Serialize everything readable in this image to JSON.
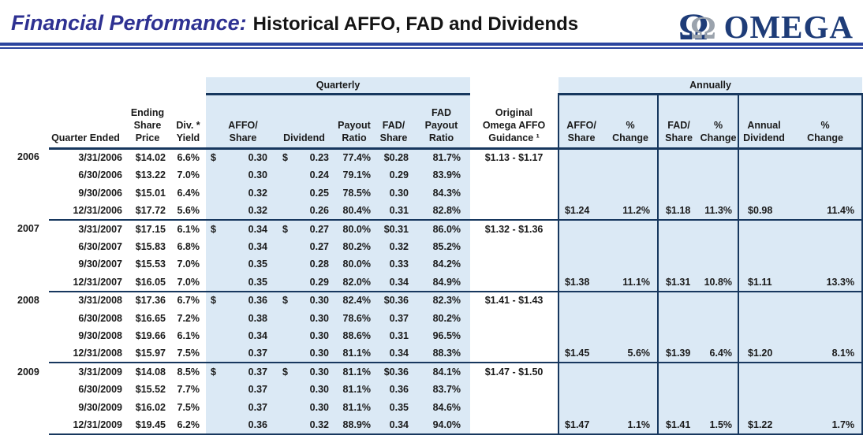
{
  "header": {
    "title_emphasis": "Financial Performance:",
    "title_rest": "Historical AFFO, FAD and Dividends",
    "logo_word": "OMEGA",
    "logo_icon": "omega-symbol"
  },
  "colors": {
    "title_blue": "#2E3192",
    "rule_blue": "#2B449E",
    "table_border_navy": "#17375E",
    "section_light_blue": "#DBE9F5",
    "logo_navy": "#1E3C78",
    "logo_silver": "#9BA3AD"
  },
  "table": {
    "bands": {
      "quarterly": "Quarterly",
      "annually": "Annually"
    },
    "headers": {
      "quarter_ended": "Quarter Ended",
      "price": "Ending\nShare\nPrice",
      "yield": "Div. *\nYield",
      "affo": "AFFO/\nShare",
      "dividend": "Dividend",
      "payout": "Payout\nRatio",
      "fad": "FAD/\nShare",
      "fad_payout": "FAD\nPayout\nRatio",
      "guidance": "Original\nOmega AFFO\nGuidance ¹",
      "a_affo": "AFFO/\nShare",
      "a_affo_chg": "%\nChange",
      "a_fad": "FAD/\nShare",
      "a_fad_chg": "%\nChange",
      "a_div": "Annual\nDividend",
      "a_div_chg": "%\nChange"
    },
    "years": [
      {
        "year": "2006",
        "rows": [
          {
            "date": "3/31/2006",
            "price": "$14.02",
            "yield": "6.6%",
            "affo_sign": "$",
            "affo": "0.30",
            "div_sign": "$",
            "div": "0.23",
            "payout": "77.4%",
            "fad": "$0.28",
            "fad_payout": "81.7%",
            "guidance": "$1.13 - $1.17"
          },
          {
            "date": "6/30/2006",
            "price": "$13.22",
            "yield": "7.0%",
            "affo": "0.30",
            "div": "0.24",
            "payout": "79.1%",
            "fad": "0.29",
            "fad_payout": "83.9%"
          },
          {
            "date": "9/30/2006",
            "price": "$15.01",
            "yield": "6.4%",
            "affo": "0.32",
            "div": "0.25",
            "payout": "78.5%",
            "fad": "0.30",
            "fad_payout": "84.3%"
          },
          {
            "date": "12/31/2006",
            "price": "$17.72",
            "yield": "5.6%",
            "affo": "0.32",
            "div": "0.26",
            "payout": "80.4%",
            "fad": "0.31",
            "fad_payout": "82.8%",
            "annual": {
              "affo": "$1.24",
              "affo_chg": "11.2%",
              "fad": "$1.18",
              "fad_chg": "11.3%",
              "div": "$0.98",
              "div_chg": "11.4%"
            }
          }
        ]
      },
      {
        "year": "2007",
        "rows": [
          {
            "date": "3/31/2007",
            "price": "$17.15",
            "yield": "6.1%",
            "affo_sign": "$",
            "affo": "0.34",
            "div_sign": "$",
            "div": "0.27",
            "payout": "80.0%",
            "fad": "$0.31",
            "fad_payout": "86.0%",
            "guidance": "$1.32 - $1.36"
          },
          {
            "date": "6/30/2007",
            "price": "$15.83",
            "yield": "6.8%",
            "affo": "0.34",
            "div": "0.27",
            "payout": "80.2%",
            "fad": "0.32",
            "fad_payout": "85.2%"
          },
          {
            "date": "9/30/2007",
            "price": "$15.53",
            "yield": "7.0%",
            "affo": "0.35",
            "div": "0.28",
            "payout": "80.0%",
            "fad": "0.33",
            "fad_payout": "84.2%"
          },
          {
            "date": "12/31/2007",
            "price": "$16.05",
            "yield": "7.0%",
            "affo": "0.35",
            "div": "0.29",
            "payout": "82.0%",
            "fad": "0.34",
            "fad_payout": "84.9%",
            "annual": {
              "affo": "$1.38",
              "affo_chg": "11.1%",
              "fad": "$1.31",
              "fad_chg": "10.8%",
              "div": "$1.11",
              "div_chg": "13.3%"
            }
          }
        ]
      },
      {
        "year": "2008",
        "rows": [
          {
            "date": "3/31/2008",
            "price": "$17.36",
            "yield": "6.7%",
            "affo_sign": "$",
            "affo": "0.36",
            "div_sign": "$",
            "div": "0.30",
            "payout": "82.4%",
            "fad": "$0.36",
            "fad_payout": "82.3%",
            "guidance": "$1.41 - $1.43"
          },
          {
            "date": "6/30/2008",
            "price": "$16.65",
            "yield": "7.2%",
            "affo": "0.38",
            "div": "0.30",
            "payout": "78.6%",
            "fad": "0.37",
            "fad_payout": "80.2%"
          },
          {
            "date": "9/30/2008",
            "price": "$19.66",
            "yield": "6.1%",
            "affo": "0.34",
            "div": "0.30",
            "payout": "88.6%",
            "fad": "0.31",
            "fad_payout": "96.5%"
          },
          {
            "date": "12/31/2008",
            "price": "$15.97",
            "yield": "7.5%",
            "affo": "0.37",
            "div": "0.30",
            "payout": "81.1%",
            "fad": "0.34",
            "fad_payout": "88.3%",
            "annual": {
              "affo": "$1.45",
              "affo_chg": "5.6%",
              "fad": "$1.39",
              "fad_chg": "6.4%",
              "div": "$1.20",
              "div_chg": "8.1%"
            }
          }
        ]
      },
      {
        "year": "2009",
        "rows": [
          {
            "date": "3/31/2009",
            "price": "$14.08",
            "yield": "8.5%",
            "affo_sign": "$",
            "affo": "0.37",
            "div_sign": "$",
            "div": "0.30",
            "payout": "81.1%",
            "fad": "$0.36",
            "fad_payout": "84.1%",
            "guidance": "$1.47 - $1.50"
          },
          {
            "date": "6/30/2009",
            "price": "$15.52",
            "yield": "7.7%",
            "affo": "0.37",
            "div": "0.30",
            "payout": "81.1%",
            "fad": "0.36",
            "fad_payout": "83.7%"
          },
          {
            "date": "9/30/2009",
            "price": "$16.02",
            "yield": "7.5%",
            "affo": "0.37",
            "div": "0.30",
            "payout": "81.1%",
            "fad": "0.35",
            "fad_payout": "84.6%"
          },
          {
            "date": "12/31/2009",
            "price": "$19.45",
            "yield": "6.2%",
            "affo": "0.36",
            "div": "0.32",
            "payout": "88.9%",
            "fad": "0.34",
            "fad_payout": "94.0%",
            "annual": {
              "affo": "$1.47",
              "affo_chg": "1.1%",
              "fad": "$1.41",
              "fad_chg": "1.5%",
              "div": "$1.22",
              "div_chg": "1.7%"
            }
          }
        ]
      }
    ]
  }
}
